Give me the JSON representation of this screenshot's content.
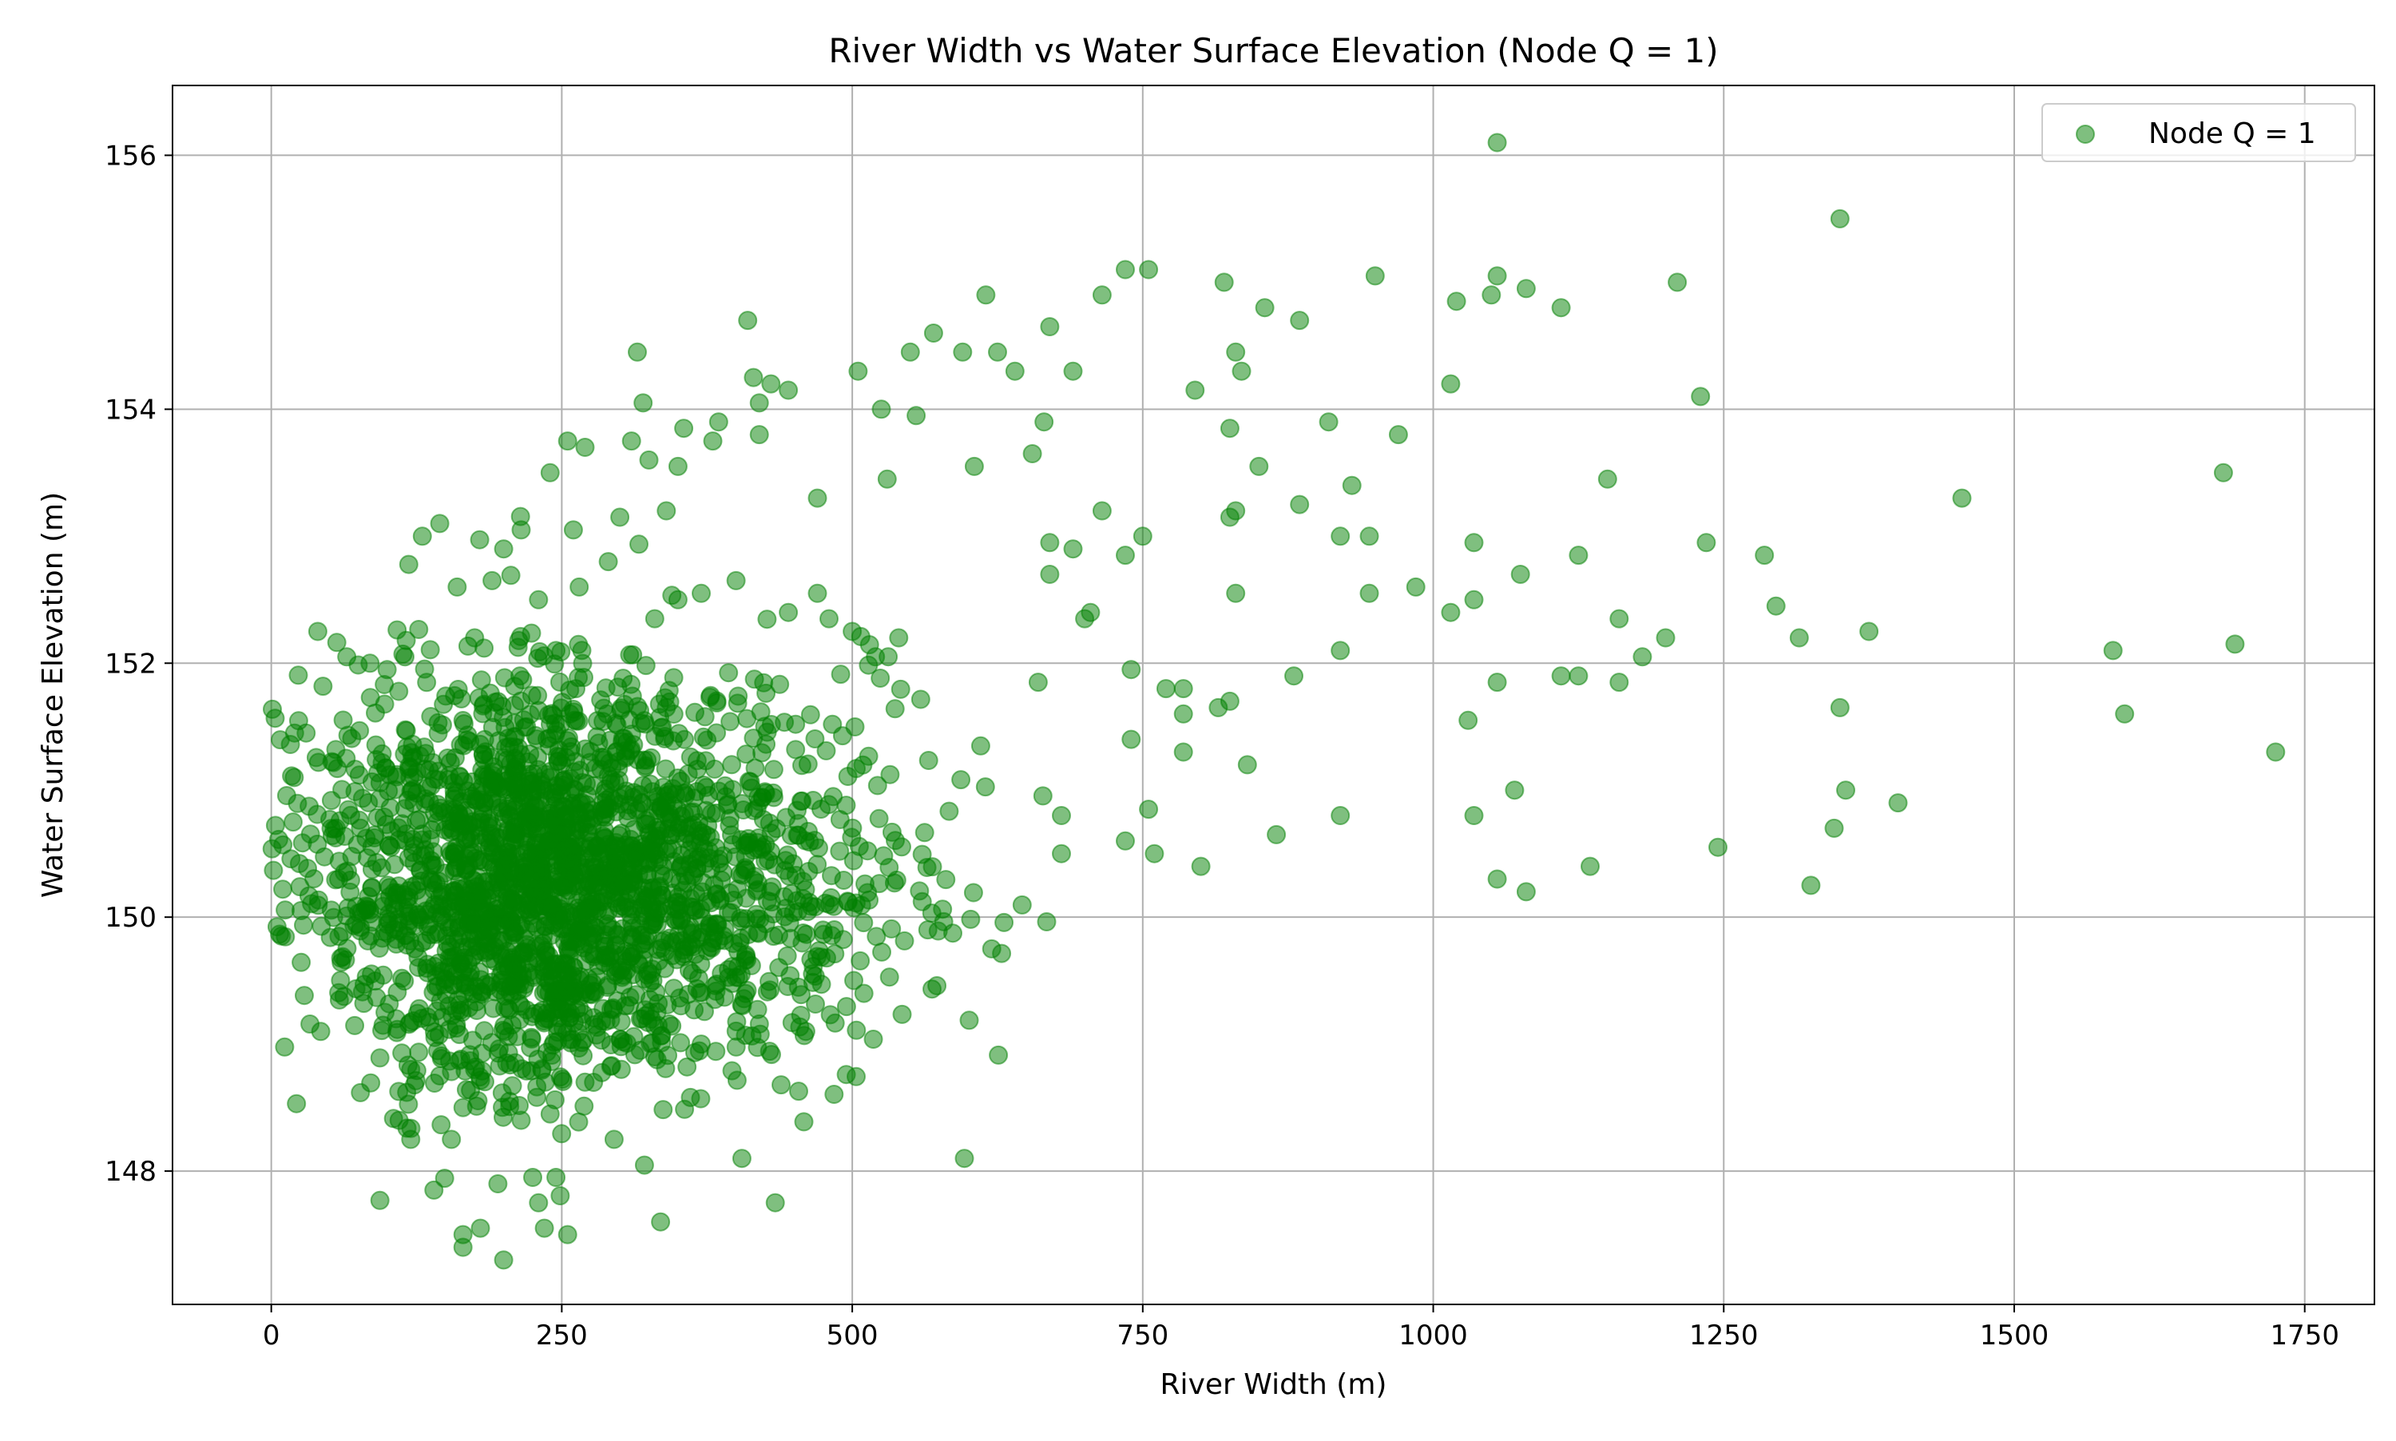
{
  "chart_data": {
    "type": "scatter",
    "title": "River Width vs Water Surface Elevation (Node Q = 1)",
    "xlabel": "River Width (m)",
    "ylabel": "Water Surface Elevation (m)",
    "xlim": [
      -85,
      1810
    ],
    "ylim": [
      146.95,
      156.55
    ],
    "xticks": [
      0,
      250,
      500,
      750,
      1000,
      1250,
      1500,
      1750
    ],
    "yticks": [
      148,
      150,
      152,
      154,
      156
    ],
    "grid": true,
    "legend": {
      "position": "top-right",
      "entries": [
        "Node Q = 1"
      ]
    },
    "series": [
      {
        "name": "Node Q = 1",
        "color": "#008000",
        "alpha": 0.5,
        "cluster": {
          "description": "dense cloud of ~2400 points",
          "x_range": [
            0,
            700
          ],
          "y_range": [
            147.3,
            155.2
          ],
          "center_x": 220,
          "center_y": 150.3
        },
        "points": [
          [
            1055,
            156.1
          ],
          [
            1350,
            155.5
          ],
          [
            755,
            155.1
          ],
          [
            735,
            155.1
          ],
          [
            950,
            155.05
          ],
          [
            1055,
            155.05
          ],
          [
            820,
            155.0
          ],
          [
            1210,
            155.0
          ],
          [
            1080,
            154.95
          ],
          [
            615,
            154.9
          ],
          [
            715,
            154.9
          ],
          [
            1020,
            154.85
          ],
          [
            1050,
            154.9
          ],
          [
            1110,
            154.8
          ],
          [
            855,
            154.8
          ],
          [
            885,
            154.7
          ],
          [
            410,
            154.7
          ],
          [
            670,
            154.65
          ],
          [
            570,
            154.6
          ],
          [
            315,
            154.45
          ],
          [
            550,
            154.45
          ],
          [
            595,
            154.45
          ],
          [
            625,
            154.45
          ],
          [
            830,
            154.45
          ],
          [
            835,
            154.3
          ],
          [
            690,
            154.3
          ],
          [
            505,
            154.3
          ],
          [
            640,
            154.3
          ],
          [
            1015,
            154.2
          ],
          [
            795,
            154.15
          ],
          [
            1230,
            154.1
          ],
          [
            320,
            154.05
          ],
          [
            525,
            154.0
          ],
          [
            555,
            153.95
          ],
          [
            665,
            153.9
          ],
          [
            910,
            153.9
          ],
          [
            825,
            153.85
          ],
          [
            970,
            153.8
          ],
          [
            850,
            153.55
          ],
          [
            655,
            153.65
          ],
          [
            605,
            153.55
          ],
          [
            470,
            153.3
          ],
          [
            530,
            153.45
          ],
          [
            1150,
            153.45
          ],
          [
            1680,
            153.5
          ],
          [
            1455,
            153.3
          ],
          [
            885,
            153.25
          ],
          [
            930,
            153.4
          ],
          [
            715,
            153.2
          ],
          [
            830,
            153.2
          ],
          [
            825,
            153.15
          ],
          [
            920,
            153.0
          ],
          [
            945,
            153.0
          ],
          [
            1035,
            152.95
          ],
          [
            1235,
            152.95
          ],
          [
            670,
            152.95
          ],
          [
            750,
            153.0
          ],
          [
            690,
            152.9
          ],
          [
            735,
            152.85
          ],
          [
            1125,
            152.85
          ],
          [
            1285,
            152.85
          ],
          [
            1075,
            152.7
          ],
          [
            670,
            152.7
          ],
          [
            985,
            152.6
          ],
          [
            830,
            152.55
          ],
          [
            945,
            152.55
          ],
          [
            1035,
            152.5
          ],
          [
            1295,
            152.45
          ],
          [
            1015,
            152.4
          ],
          [
            705,
            152.4
          ],
          [
            700,
            152.35
          ],
          [
            1160,
            152.35
          ],
          [
            1375,
            152.25
          ],
          [
            1315,
            152.2
          ],
          [
            1200,
            152.2
          ],
          [
            920,
            152.1
          ],
          [
            1585,
            152.1
          ],
          [
            1690,
            152.15
          ],
          [
            1180,
            152.05
          ],
          [
            740,
            151.95
          ],
          [
            770,
            151.8
          ],
          [
            785,
            151.8
          ],
          [
            880,
            151.9
          ],
          [
            1055,
            151.85
          ],
          [
            1110,
            151.9
          ],
          [
            1125,
            151.9
          ],
          [
            1160,
            151.85
          ],
          [
            660,
            151.85
          ],
          [
            815,
            151.65
          ],
          [
            825,
            151.7
          ],
          [
            785,
            151.6
          ],
          [
            1350,
            151.65
          ],
          [
            1595,
            151.6
          ],
          [
            1030,
            151.55
          ],
          [
            1725,
            151.3
          ],
          [
            740,
            151.4
          ],
          [
            785,
            151.3
          ],
          [
            840,
            151.2
          ],
          [
            1355,
            151.0
          ],
          [
            1400,
            150.9
          ],
          [
            1070,
            151.0
          ],
          [
            755,
            150.85
          ],
          [
            680,
            150.8
          ],
          [
            735,
            150.6
          ],
          [
            865,
            150.65
          ],
          [
            920,
            150.8
          ],
          [
            1035,
            150.8
          ],
          [
            1345,
            150.7
          ],
          [
            1245,
            150.55
          ],
          [
            760,
            150.5
          ],
          [
            680,
            150.5
          ],
          [
            800,
            150.4
          ],
          [
            1135,
            150.4
          ],
          [
            1055,
            150.3
          ],
          [
            1325,
            150.25
          ],
          [
            1080,
            150.2
          ],
          [
            620,
            149.75
          ],
          [
            565,
            149.9
          ],
          [
            510,
            149.4
          ],
          [
            460,
            149.1
          ],
          [
            405,
            148.1
          ],
          [
            335,
            147.6
          ],
          [
            255,
            147.5
          ],
          [
            200,
            147.3
          ],
          [
            165,
            147.4
          ],
          [
            165,
            147.5
          ],
          [
            180,
            147.55
          ],
          [
            235,
            147.55
          ],
          [
            230,
            147.75
          ],
          [
            245,
            147.95
          ],
          [
            225,
            147.95
          ],
          [
            195,
            147.9
          ],
          [
            140,
            147.85
          ],
          [
            295,
            148.25
          ],
          [
            155,
            148.25
          ],
          [
            120,
            148.25
          ],
          [
            110,
            148.4
          ],
          [
            215,
            148.4
          ],
          [
            240,
            148.45
          ],
          [
            165,
            148.5
          ],
          [
            205,
            148.55
          ],
          [
            145,
            148.75
          ],
          [
            175,
            148.8
          ],
          [
            120,
            148.8
          ],
          [
            270,
            148.7
          ],
          [
            330,
            148.9
          ],
          [
            40,
            152.25
          ],
          [
            30,
            151.45
          ],
          [
            20,
            151.45
          ],
          [
            65,
            152.05
          ],
          [
            85,
            152.0
          ],
          [
            145,
            153.1
          ],
          [
            130,
            153.0
          ],
          [
            240,
            153.5
          ],
          [
            255,
            153.75
          ],
          [
            270,
            153.7
          ],
          [
            310,
            153.75
          ],
          [
            325,
            153.6
          ],
          [
            350,
            153.55
          ],
          [
            355,
            153.85
          ],
          [
            385,
            153.9
          ],
          [
            420,
            153.8
          ],
          [
            415,
            154.25
          ],
          [
            445,
            154.15
          ],
          [
            420,
            154.05
          ],
          [
            380,
            153.75
          ],
          [
            430,
            154.2
          ],
          [
            200,
            152.9
          ],
          [
            215,
            153.05
          ],
          [
            260,
            153.05
          ],
          [
            300,
            153.15
          ],
          [
            340,
            153.2
          ],
          [
            290,
            152.8
          ],
          [
            265,
            152.6
          ],
          [
            230,
            152.5
          ],
          [
            190,
            152.65
          ],
          [
            160,
            152.6
          ],
          [
            175,
            152.2
          ],
          [
            115,
            152.05
          ],
          [
            245,
            152.1
          ],
          [
            330,
            152.35
          ],
          [
            350,
            152.5
          ],
          [
            370,
            152.55
          ],
          [
            400,
            152.65
          ],
          [
            445,
            152.4
          ],
          [
            470,
            152.55
          ],
          [
            480,
            152.35
          ],
          [
            500,
            152.25
          ],
          [
            520,
            152.05
          ],
          [
            540,
            152.2
          ]
        ]
      }
    ]
  }
}
